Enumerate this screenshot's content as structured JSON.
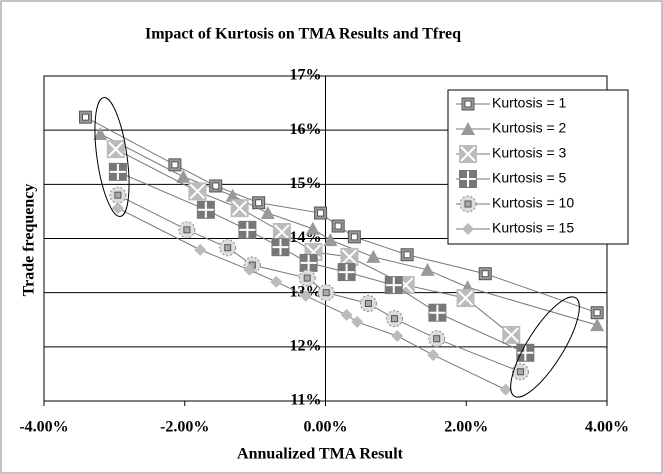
{
  "chart_data": {
    "type": "scatter",
    "title": "Impact of Kurtosis on TMA Results and Tfreq",
    "xlabel": "Annualized TMA Result",
    "ylabel": "Trade  frequency",
    "xlim": [
      -4,
      4
    ],
    "ylim": [
      11,
      17
    ],
    "xticks": [
      {
        "value": -4,
        "label": "-4.00%"
      },
      {
        "value": -2,
        "label": "-2.00%"
      },
      {
        "value": 0,
        "label": "0.00%"
      },
      {
        "value": 2,
        "label": "2.00%"
      },
      {
        "value": 4,
        "label": "4.00%"
      }
    ],
    "yticks": [
      {
        "value": 11,
        "label": "11%"
      },
      {
        "value": 12,
        "label": "12%"
      },
      {
        "value": 13,
        "label": "13%"
      },
      {
        "value": 14,
        "label": "14%"
      },
      {
        "value": 15,
        "label": "15%"
      },
      {
        "value": 16,
        "label": "16%"
      },
      {
        "value": 17,
        "label": "17%"
      }
    ],
    "grid": true,
    "legend": "upper right",
    "series": [
      {
        "name": "Kurtosis  = 1",
        "color": "#999999",
        "marker": "square-small",
        "x": [
          -3.41,
          -2.14,
          -1.56,
          -0.95,
          -0.07,
          0.18,
          0.41,
          1.16,
          2.27,
          3.86
        ],
        "values": [
          16.24,
          15.36,
          14.97,
          14.66,
          14.47,
          14.23,
          14.03,
          13.7,
          13.35,
          12.63
        ]
      },
      {
        "name": "Kurtosis  = 2",
        "color": "#999999",
        "marker": "triangle",
        "x": [
          -3.2,
          -2.02,
          -1.32,
          -0.82,
          -0.18,
          0.07,
          0.68,
          1.45,
          2.02,
          3.86
        ],
        "values": [
          15.93,
          15.14,
          14.79,
          14.47,
          14.18,
          13.97,
          13.66,
          13.42,
          13.1,
          12.4
        ]
      },
      {
        "name": "Kurtosis  = 3",
        "color": "#bbbbbb",
        "marker": "x-square",
        "x": [
          -2.98,
          -1.82,
          -1.22,
          -0.62,
          -0.17,
          0.34,
          1.14,
          1.99,
          2.64
        ],
        "values": [
          15.65,
          14.87,
          14.56,
          14.12,
          13.75,
          13.66,
          13.14,
          12.9,
          12.22
        ]
      },
      {
        "name": "Kurtosis  = 5",
        "color": "#777777",
        "marker": "plus-square",
        "x": [
          -2.95,
          -1.7,
          -1.11,
          -0.64,
          -0.24,
          0.3,
          0.97,
          1.59,
          2.84
        ],
        "values": [
          15.23,
          14.53,
          14.16,
          13.84,
          13.55,
          13.38,
          13.14,
          12.63,
          11.89
        ]
      },
      {
        "name": "Kurtosis  = 10",
        "color": "#aaaaaa",
        "marker": "circle-square",
        "x": [
          -2.95,
          -1.97,
          -1.39,
          -1.04,
          -0.26,
          0.01,
          0.61,
          0.98,
          1.58,
          2.77
        ],
        "values": [
          14.8,
          14.16,
          13.83,
          13.51,
          13.27,
          13.0,
          12.8,
          12.52,
          12.15,
          11.54
        ]
      },
      {
        "name": "Kurtosis  = 15",
        "color": "#bbbbbb",
        "marker": "diamond",
        "x": [
          -2.95,
          -1.78,
          -1.08,
          -0.7,
          -0.28,
          0.3,
          0.45,
          1.02,
          1.53,
          2.56
        ],
        "values": [
          14.56,
          13.79,
          13.42,
          13.2,
          12.94,
          12.59,
          12.46,
          12.2,
          11.85,
          11.21
        ]
      }
    ]
  }
}
